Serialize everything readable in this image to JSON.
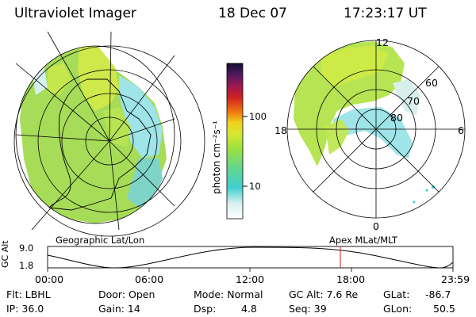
{
  "header": {
    "instrument": "Ultraviolet Imager",
    "date": "18 Dec 07",
    "time": "17:23:17 UT"
  },
  "colorbar": {
    "unit_label": "photon cm⁻²s⁻¹",
    "ticks": [
      "100",
      "10"
    ]
  },
  "left_map": {
    "label": "Geographic Lat/Lon"
  },
  "right_map": {
    "label": "Apex MLat/MLT",
    "mlt_labels": {
      "top": "12",
      "left": "18",
      "right": "6",
      "bottom": "0"
    },
    "mlat_labels": [
      "60",
      "70",
      "80"
    ]
  },
  "timeline": {
    "ylabel": "GC Alt",
    "yticks": [
      "9.0",
      "1.8"
    ],
    "xticks": [
      "00:00",
      "06:00",
      "12:00",
      "18:00",
      "23:59"
    ],
    "current_time_marker": "17:23"
  },
  "info": {
    "filter": "Flt: LBHL",
    "ip": "IP: 36.0",
    "door": "Door: Open",
    "gain": "Gain: 14",
    "mode": "Mode: Normal",
    "dsp_label": "Dsp:",
    "dsp_value": "4.8",
    "gc_alt": "GC Alt: 7.6 Re",
    "seq": "Seq: 39",
    "glat_label": "GLat:",
    "glat_value": "-86.7",
    "glon_label": "GLon:",
    "glon_value": "50.5"
  },
  "colors": {
    "background": "#ffffff",
    "aurora_low": "#9ee4e8",
    "aurora_mid": "#a8e050",
    "aurora_high": "#d8ec3a",
    "marker": "#cc2020"
  }
}
